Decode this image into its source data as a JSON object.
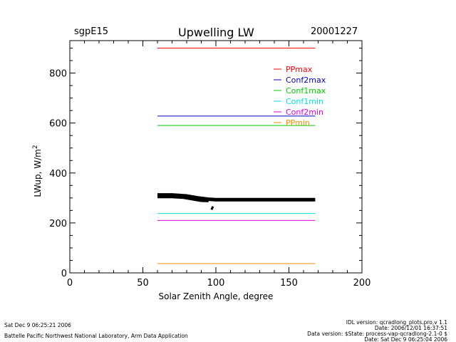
{
  "header": {
    "site": "sgpE15",
    "title": "Upwelling LW",
    "date": "20001227"
  },
  "footer": {
    "generated": "Sat Dec  9 06:25:21 2006",
    "organization": "Battelle Pacific Northwest National Laboratory, Arm Data Application",
    "idl_version": "IDL version: qcradlong_plots.pro,v 1.1",
    "idl_date": "Date: 2006/12/01 16:37:51",
    "data_version": "Data version: $State: process-vap-qcradlong-2.1-0 $",
    "data_date": "Date: Sat Dec  9 06:25:04 2006"
  },
  "chart_data": {
    "type": "line",
    "title": "Upwelling LW",
    "xlabel": "Solar Zenith Angle, degree",
    "ylabel": "LWup, W/m^2",
    "xlim": [
      0,
      200
    ],
    "ylim": [
      0,
      930
    ],
    "x_ticks": [
      0,
      50,
      100,
      150,
      200
    ],
    "y_ticks": [
      0,
      200,
      400,
      600,
      800
    ],
    "grid": false,
    "legend_position": "top-right",
    "series": [
      {
        "name": "PPmax",
        "color": "#ff0000",
        "x": [
          60,
          168
        ],
        "y": [
          900,
          900
        ]
      },
      {
        "name": "Conf2max",
        "color": "#0000c0",
        "x": [
          60,
          168
        ],
        "y": [
          628,
          628
        ]
      },
      {
        "name": "Conf1max",
        "color": "#00cc00",
        "x": [
          60,
          168
        ],
        "y": [
          590,
          590
        ]
      },
      {
        "name": "Conf1min",
        "color": "#00e0e0",
        "x": [
          60,
          168
        ],
        "y": [
          238,
          238
        ]
      },
      {
        "name": "Conf2min",
        "color": "#e000e0",
        "x": [
          60,
          168
        ],
        "y": [
          210,
          210
        ]
      },
      {
        "name": "PPmin",
        "color": "#ff8c00",
        "x": [
          60,
          168
        ],
        "y": [
          37,
          37
        ]
      }
    ],
    "observed": {
      "color": "#000000",
      "segments": [
        {
          "x": [
            60,
            70,
            80,
            88,
            95,
            100,
            120,
            140,
            168
          ],
          "y": [
            312,
            312,
            308,
            300,
            295,
            293,
            293,
            293,
            293
          ]
        },
        {
          "x": [
            60,
            70,
            78,
            85,
            90,
            95
          ],
          "y": [
            306,
            306,
            303,
            296,
            291,
            290
          ]
        },
        {
          "x": [
            97,
            98
          ],
          "y": [
            253,
            266
          ]
        }
      ]
    }
  }
}
